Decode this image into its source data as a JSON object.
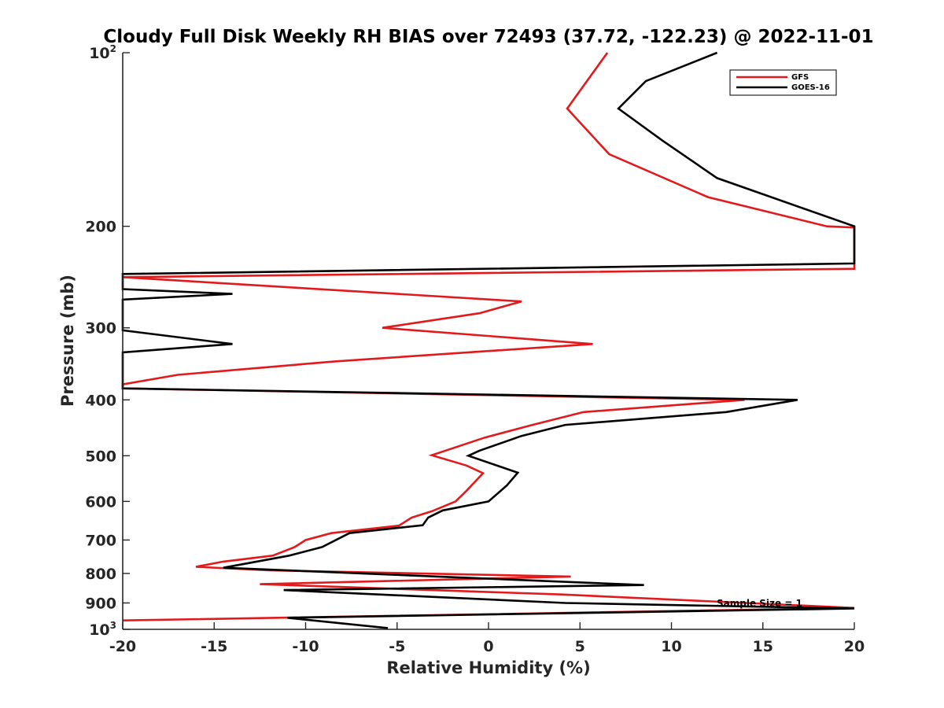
{
  "chart_data": {
    "type": "line",
    "title": "Cloudy Full Disk Weekly RH BIAS over 72493 (37.72, -122.23) @ 2022-11-01",
    "xlabel": "Relative Humidity (%)",
    "ylabel": "Pressure (mb)",
    "xlim": [
      -20,
      20
    ],
    "ylim": [
      100,
      1000
    ],
    "yscale": "log",
    "y_reversed": true,
    "grid": false,
    "legend_position": "top-right",
    "x_ticks": [
      "-20",
      "-15",
      "-10",
      "-5",
      "0",
      "5",
      "10",
      "15",
      "20"
    ],
    "y_ticks": [
      {
        "value": 100,
        "base": "10",
        "exp": "2"
      },
      {
        "value": 200,
        "label": "200"
      },
      {
        "value": 300,
        "label": "300"
      },
      {
        "value": 400,
        "label": "400"
      },
      {
        "value": 500,
        "label": "500"
      },
      {
        "value": 600,
        "label": "600"
      },
      {
        "value": 700,
        "label": "700"
      },
      {
        "value": 800,
        "label": "800"
      },
      {
        "value": 900,
        "label": "900"
      },
      {
        "value": 1000,
        "base": "10",
        "exp": "3"
      }
    ],
    "annotation": "Sample Size = 1",
    "series": [
      {
        "name": "GFS",
        "color": "#e31a1c",
        "points": [
          [
            6.5,
            100
          ],
          [
            4.3,
            125
          ],
          [
            6.6,
            150
          ],
          [
            12,
            178
          ],
          [
            18.5,
            200
          ],
          [
            20,
            201
          ],
          [
            20,
            237
          ],
          [
            -20,
            245
          ],
          [
            1.8,
            270
          ],
          [
            -0.5,
            283
          ],
          [
            -5.8,
            300
          ],
          [
            5.7,
            320
          ],
          [
            -8.4,
            343
          ],
          [
            -17,
            362
          ],
          [
            -20,
            376
          ],
          [
            -20,
            382
          ],
          [
            14,
            400
          ],
          [
            5.2,
            420
          ],
          [
            2.4,
            442
          ],
          [
            -0.2,
            465
          ],
          [
            -3.1,
            499
          ],
          [
            -1.2,
            520
          ],
          [
            -0.3,
            536
          ],
          [
            -1.2,
            575
          ],
          [
            -1.8,
            600
          ],
          [
            -3.1,
            624
          ],
          [
            -4.2,
            640
          ],
          [
            -4.9,
            661
          ],
          [
            -8.6,
            681
          ],
          [
            -10,
            700
          ],
          [
            -10.6,
            720
          ],
          [
            -11.8,
            745
          ],
          [
            -14.5,
            763
          ],
          [
            -16,
            779
          ],
          [
            -12,
            790
          ],
          [
            4.5,
            810
          ],
          [
            -12.5,
            835
          ],
          [
            4,
            870
          ],
          [
            20,
            918
          ],
          [
            -20,
            965
          ]
        ]
      },
      {
        "name": "GOES-16",
        "color": "#000000",
        "points": [
          [
            12.5,
            100
          ],
          [
            8.6,
            112
          ],
          [
            7.1,
            125
          ],
          [
            9.5,
            142
          ],
          [
            12.5,
            165
          ],
          [
            20,
            200
          ],
          [
            20,
            232
          ],
          [
            -20,
            242
          ],
          [
            -20,
            257
          ],
          [
            -14,
            262
          ],
          [
            -20,
            268
          ],
          [
            -20,
            303
          ],
          [
            -14,
            320
          ],
          [
            -20,
            331
          ],
          [
            -20,
            382
          ],
          [
            16.9,
            400
          ],
          [
            13,
            420
          ],
          [
            4.2,
            442
          ],
          [
            1.8,
            462
          ],
          [
            -0.5,
            490
          ],
          [
            -1.1,
            500
          ],
          [
            1.6,
            535
          ],
          [
            1,
            563
          ],
          [
            0,
            600
          ],
          [
            -2.5,
            622
          ],
          [
            -3.3,
            640
          ],
          [
            -3.6,
            660
          ],
          [
            -7.6,
            681
          ],
          [
            -9.1,
            720
          ],
          [
            -10.9,
            745
          ],
          [
            -14.5,
            782
          ],
          [
            8.5,
            838
          ],
          [
            -11.2,
            855
          ],
          [
            4.2,
            900
          ],
          [
            20,
            920
          ],
          [
            -11,
            955
          ],
          [
            -5.5,
            995
          ]
        ]
      }
    ]
  }
}
